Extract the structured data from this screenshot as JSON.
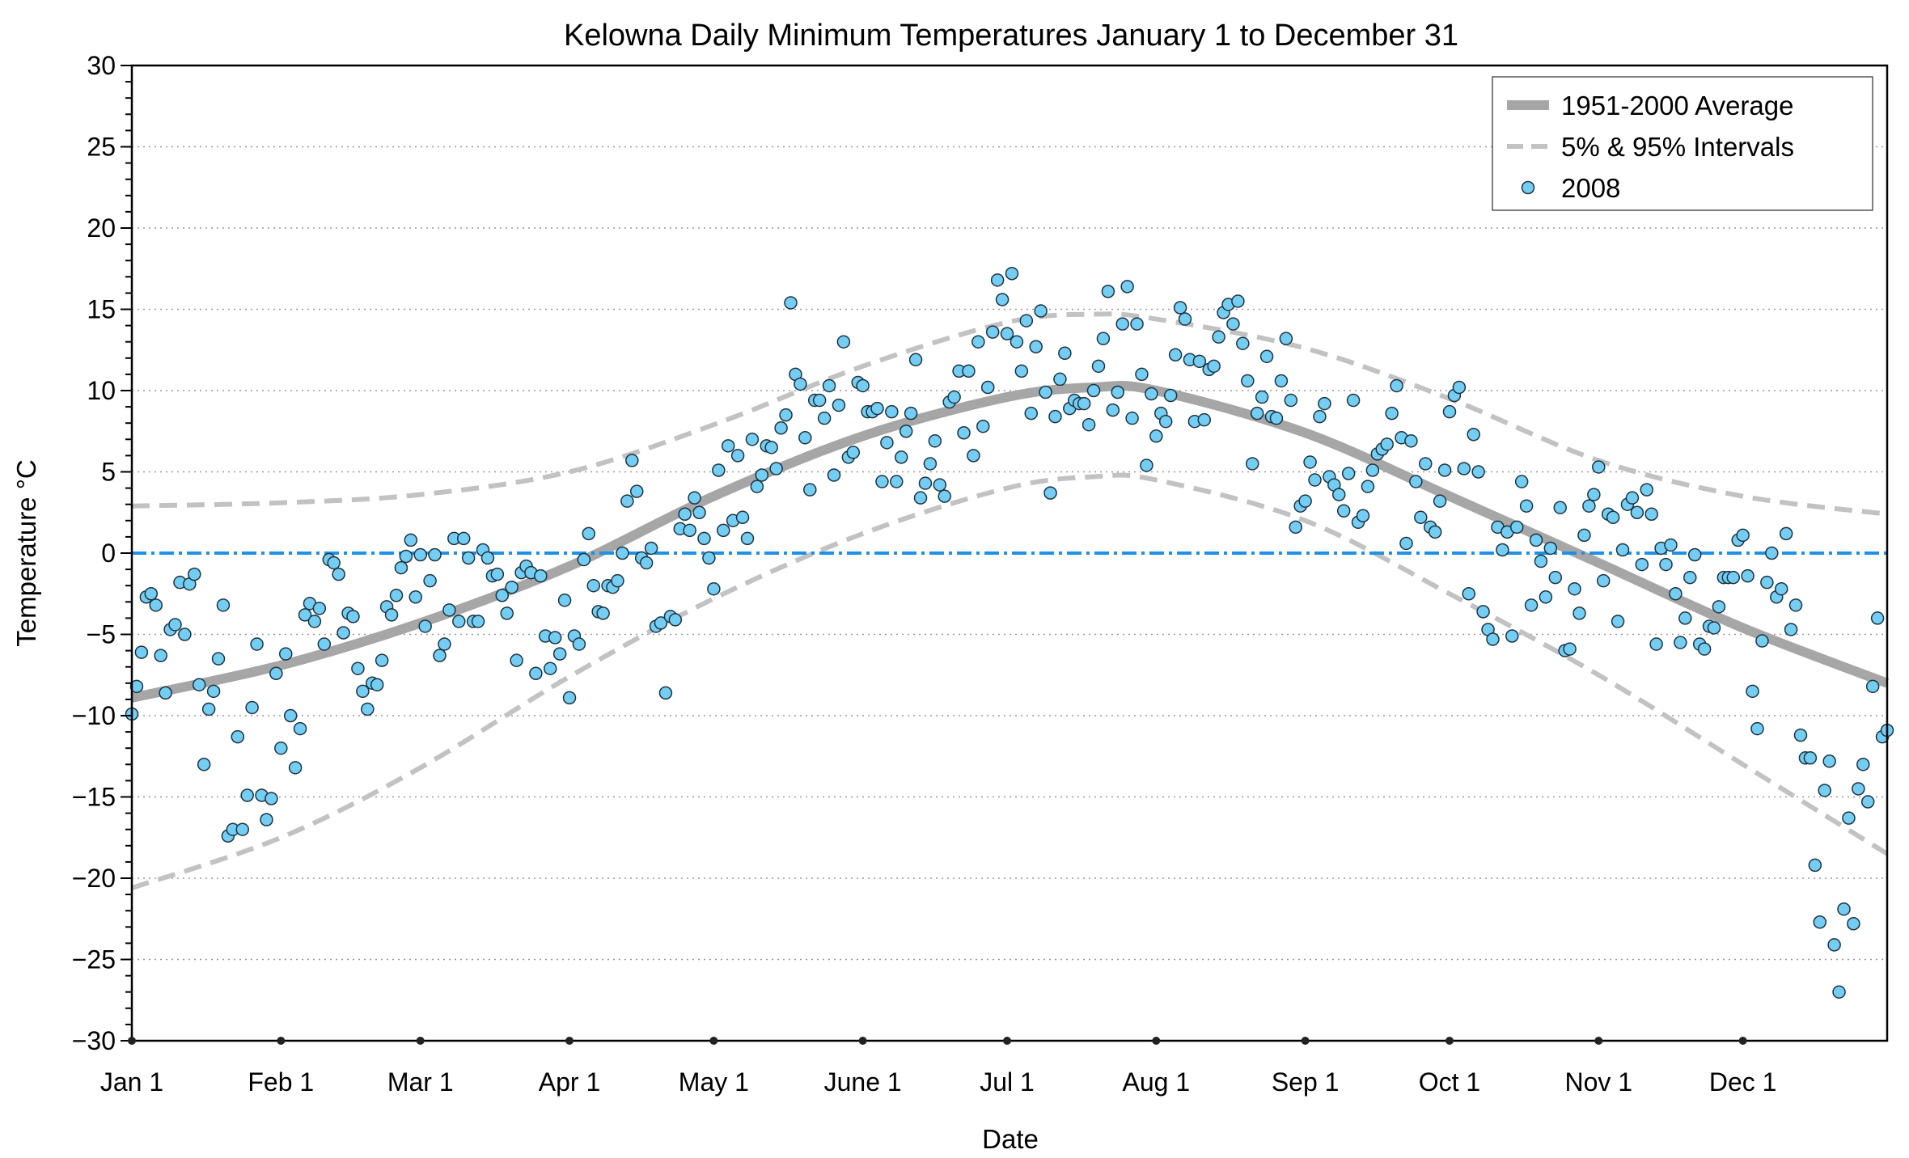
{
  "chart_data": {
    "type": "scatter",
    "title": "Kelowna Daily Minimum Temperatures January 1 to December 31",
    "xlabel": "Date",
    "ylabel": "Temperature °C",
    "ylim": [
      -30,
      30
    ],
    "xlim_days": [
      0,
      365
    ],
    "y_ticks": [
      30,
      25,
      20,
      15,
      10,
      5,
      0,
      -5,
      -10,
      -15,
      -20,
      -25,
      -30
    ],
    "y_tick_labels": [
      "30",
      "25",
      "20",
      "15",
      "10",
      "5",
      "0",
      "−5",
      "−10",
      "−15",
      "−20",
      "−25",
      "−30"
    ],
    "x_tick_days": [
      0,
      31,
      60,
      91,
      121,
      152,
      182,
      213,
      244,
      274,
      305,
      335
    ],
    "x_tick_labels": [
      "Jan 1",
      "Feb 1",
      "Mar 1",
      "Apr 1",
      "May 1",
      "June 1",
      "Jul 1",
      "Aug 1",
      "Sep 1",
      "Oct 1",
      "Nov 1",
      "Dec 1"
    ],
    "grid": "horizontal dotted at major y ticks",
    "legend": {
      "placement": "top-right",
      "entries": [
        "1951-2000 Average",
        "5% & 95% Intervals",
        "2008"
      ]
    },
    "colors": {
      "average": "#a6a6a6",
      "intervals": "#c2c2c2",
      "points": "#74cdf2",
      "point_edge": "#1d3340",
      "zero_line": "#1f90e6"
    },
    "reference_line": {
      "y": 0,
      "style": "dash-dot"
    },
    "curve_days": [
      0,
      31,
      60,
      91,
      121,
      152,
      182,
      200,
      213,
      244,
      274,
      305,
      335,
      365
    ],
    "average": [
      -8.9,
      -6.9,
      -4.3,
      -0.8,
      3.5,
      7.2,
      9.6,
      10.2,
      10.0,
      7.4,
      3.5,
      -0.6,
      -4.6,
      -8.0
    ],
    "p95": [
      2.9,
      3.1,
      3.6,
      5.0,
      7.9,
      11.5,
      14.2,
      14.7,
      14.4,
      12.6,
      9.5,
      5.7,
      3.5,
      2.4
    ],
    "p05": [
      -20.6,
      -17.5,
      -13.2,
      -7.6,
      -2.8,
      1.2,
      4.0,
      4.7,
      4.5,
      2.0,
      -2.5,
      -7.5,
      -13.0,
      -18.5
    ],
    "series_2008": [
      -9.9,
      -8.2,
      -6.1,
      -2.7,
      -2.5,
      -3.2,
      -6.3,
      -8.6,
      -4.7,
      -4.4,
      -1.8,
      -5.0,
      -1.9,
      -1.3,
      -8.1,
      -13.0,
      -9.6,
      -8.5,
      -6.5,
      -3.2,
      -17.4,
      -17.0,
      -11.3,
      -17.0,
      -14.9,
      -9.5,
      -5.6,
      -14.9,
      -16.4,
      -15.1,
      -7.4,
      -12.0,
      -6.2,
      -10.0,
      -13.2,
      -10.8,
      -3.8,
      -3.1,
      -4.2,
      -3.4,
      -5.6,
      -0.4,
      -0.6,
      -1.3,
      -4.9,
      -3.7,
      -3.9,
      -7.1,
      -8.5,
      -9.6,
      -8.0,
      -8.1,
      -6.6,
      -3.3,
      -3.8,
      -2.6,
      -0.9,
      -0.2,
      0.8,
      -2.7,
      -0.1,
      -4.5,
      -1.7,
      -0.1,
      -6.3,
      -5.6,
      -3.5,
      0.9,
      -4.2,
      0.9,
      -0.3,
      -4.2,
      -4.2,
      0.2,
      -0.3,
      -1.4,
      -1.3,
      -2.6,
      -3.7,
      -2.1,
      -6.6,
      -1.2,
      -0.8,
      -1.2,
      -7.4,
      -1.4,
      -5.1,
      -7.1,
      -5.2,
      -6.2,
      -2.9,
      -8.9,
      -5.1,
      -5.6,
      -0.4,
      1.2,
      -2.0,
      -3.6,
      -3.7,
      -2.0,
      -2.1,
      -1.7,
      0.0,
      3.2,
      5.7,
      3.8,
      -0.3,
      -0.6,
      0.3,
      -4.5,
      -4.3,
      -8.6,
      -3.9,
      -4.1,
      1.5,
      2.4,
      1.4,
      3.4,
      2.5,
      0.9,
      -0.3,
      -2.2,
      5.1,
      1.4,
      6.6,
      2.0,
      6.0,
      2.2,
      0.9,
      7.0,
      4.1,
      4.8,
      6.6,
      6.5,
      5.2,
      7.7,
      8.5,
      15.4,
      11.0,
      10.4,
      7.1,
      3.9,
      9.4,
      9.4,
      8.3,
      10.3,
      4.8,
      9.1,
      13.0,
      5.9,
      6.2,
      10.5,
      10.3,
      8.7,
      8.7,
      8.9,
      4.4,
      6.8,
      8.7,
      4.4,
      5.9,
      7.5,
      8.6,
      11.9,
      3.4,
      4.3,
      5.5,
      6.9,
      4.2,
      3.5,
      9.3,
      9.6,
      11.2,
      7.4,
      11.2,
      6.0,
      13.0,
      7.8,
      10.2,
      13.6,
      16.8,
      15.6,
      13.5,
      17.2,
      13.0,
      11.2,
      14.3,
      8.6,
      12.7,
      14.9,
      9.9,
      3.7,
      8.4,
      10.7,
      12.3,
      8.9,
      9.4,
      9.2,
      9.2,
      7.9,
      10.0,
      11.5,
      13.2,
      16.1,
      8.8,
      9.9,
      14.1,
      16.4,
      8.3,
      14.1,
      11.0,
      5.4,
      9.8,
      7.2,
      8.6,
      8.1,
      9.7,
      12.2,
      15.1,
      14.4,
      11.9,
      8.1,
      11.8,
      8.2,
      11.3,
      11.5,
      13.3,
      14.8,
      15.3,
      14.1,
      15.5,
      12.9,
      10.6,
      5.5,
      8.6,
      9.6,
      12.1,
      8.4,
      8.3,
      10.6,
      13.2,
      9.4,
      1.6,
      2.9,
      3.2,
      5.6,
      4.5,
      8.4,
      9.2,
      4.7,
      4.2,
      3.6,
      2.6,
      4.9,
      9.4,
      1.9,
      2.3,
      4.1,
      5.1,
      6.1,
      6.4,
      6.7,
      8.6,
      10.3,
      7.1,
      0.6,
      6.9,
      4.4,
      2.2,
      5.5,
      1.6,
      1.3,
      3.2,
      5.1,
      8.7,
      9.7,
      10.2,
      5.2,
      -2.5,
      7.3,
      5.0,
      -3.6,
      -4.7,
      -5.3,
      1.6,
      0.2,
      1.3,
      -5.1,
      1.6,
      4.4,
      2.9,
      -3.2,
      0.8,
      -0.5,
      -2.7,
      0.3,
      -1.5,
      2.8,
      -6.0,
      -5.9,
      -2.2,
      -3.7,
      1.1,
      2.9,
      3.6,
      5.3,
      -1.7,
      2.4,
      2.2,
      -4.2,
      0.2,
      3.0,
      3.4,
      2.5,
      -0.7,
      3.9,
      2.4,
      -5.6,
      0.3,
      -0.7,
      0.5,
      -2.5,
      -5.5,
      -4.0,
      -1.5,
      -0.1,
      -5.6,
      -5.9,
      -4.5,
      -4.6,
      -3.3,
      -1.5,
      -1.5,
      -1.5,
      0.8,
      1.1,
      -1.4,
      -8.5,
      -10.8,
      -5.4,
      -1.8,
      0.0,
      -2.7,
      -2.2,
      1.2,
      -4.7,
      -3.2,
      -11.2,
      -12.6,
      -12.6,
      -19.2,
      -22.7,
      -14.6,
      -12.8,
      -24.1,
      -27.0,
      -21.9,
      -16.3,
      -22.8,
      -14.5,
      -13.0,
      -15.3,
      -8.2,
      -4.0,
      -11.3,
      -10.9
    ]
  }
}
